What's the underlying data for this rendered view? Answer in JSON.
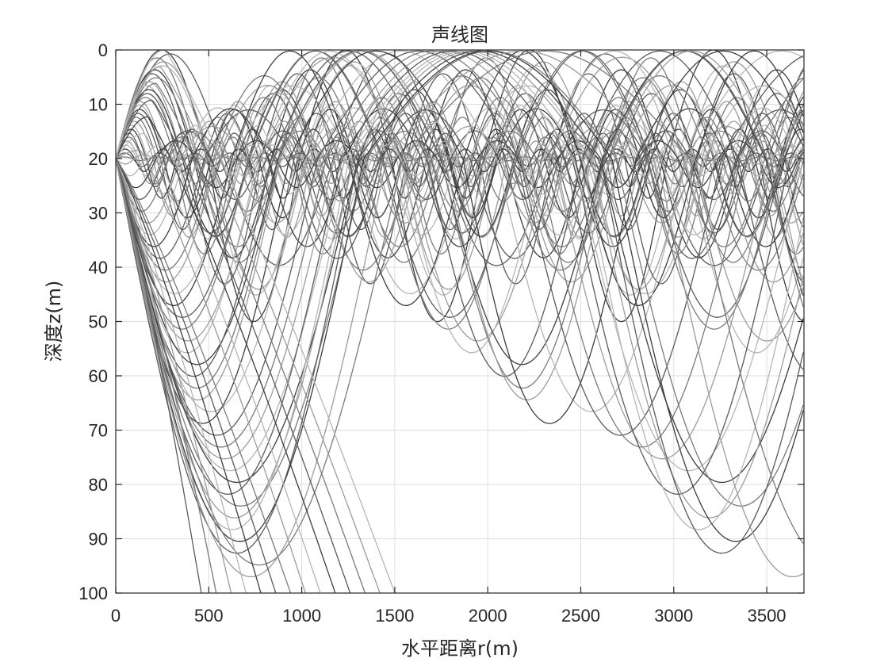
{
  "chart_data": {
    "type": "line",
    "title": "声线图",
    "xlabel": "水平距离r(m)",
    "ylabel": "深度z(m)",
    "xlim": [
      0,
      3700
    ],
    "ylim": [
      0,
      100
    ],
    "y_reversed": true,
    "grid": true,
    "legend": "none",
    "xticks": [
      0,
      500,
      1000,
      1500,
      2000,
      2500,
      3000,
      3500
    ],
    "xtick_labels": [
      "0",
      "500",
      "1000",
      "1500",
      "2000",
      "2500",
      "3000",
      "3500"
    ],
    "yticks": [
      0,
      10,
      20,
      30,
      40,
      50,
      60,
      70,
      80,
      90,
      100
    ],
    "ytick_labels": [
      "0",
      "10",
      "20",
      "30",
      "40",
      "50",
      "60",
      "70",
      "80",
      "90",
      "100"
    ],
    "source": {
      "r": 0,
      "z": 20
    },
    "channel_axis_depth": 20,
    "colors": [
      "#3c3c3c",
      "#5a5a5a",
      "#7a7a7a",
      "#9b9b9b",
      "#b5b5b5"
    ],
    "ray_fans": {
      "up_trapped": {
        "count": 28,
        "min_depth_range": [
          0,
          19.7
        ],
        "period_range": [
          180,
          1100
        ]
      },
      "down_trapped": {
        "count": 36,
        "max_depth_range": [
          21,
          97
        ],
        "period_range": [
          200,
          3000
        ]
      },
      "escaping": {
        "count": 14,
        "range_at_100m": [
          460,
          1500
        ]
      }
    }
  }
}
